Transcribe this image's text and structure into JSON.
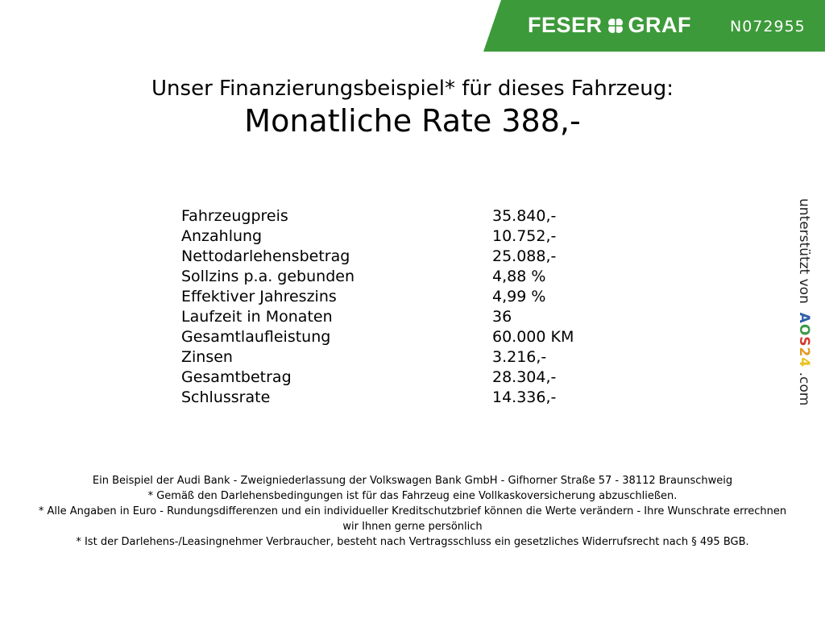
{
  "header": {
    "brand": "FESER",
    "brand2": "GRAF",
    "code": "N072955",
    "brand_color": "#3d9a3a"
  },
  "title": "Unser Finanzierungsbeispiel* für dieses Fahrzeug:",
  "rate": "Monatliche Rate 388,-",
  "rows": [
    {
      "label": "Fahrzeugpreis",
      "value": "35.840,-"
    },
    {
      "label": "Anzahlung",
      "value": "10.752,-"
    },
    {
      "label": "Nettodarlehensbetrag",
      "value": "25.088,-"
    },
    {
      "label": "Sollzins p.a. gebunden",
      "value": "4,88 %"
    },
    {
      "label": "Effektiver Jahreszins",
      "value": "4,99 %"
    },
    {
      "label": "Laufzeit in Monaten",
      "value": "36"
    },
    {
      "label": "Gesamtlaufleistung",
      "value": "60.000 KM"
    },
    {
      "label": "Zinsen",
      "value": "3.216,-"
    },
    {
      "label": "Gesamtbetrag",
      "value": "28.304,-"
    },
    {
      "label": "Schlussrate",
      "value": "14.336,-"
    }
  ],
  "side": {
    "prefix": "unterstützt von",
    "a": "A",
    "o": "O",
    "s": "S",
    "n2": "2",
    "n4": "4",
    "suffix": ".com"
  },
  "footer": [
    "Ein Beispiel der Audi Bank - Zweigniederlassung der Volkswagen Bank GmbH - Gifhorner Straße 57 - 38112 Braunschweig",
    "* Gemäß den Darlehensbedingungen ist für das Fahrzeug eine Vollkaskoversicherung abzuschließen.",
    "* Alle Angaben in Euro - Rundungsdifferenzen und ein individueller Kreditschutzbrief können die Werte verändern - Ihre Wunschrate errechnen wir Ihnen gerne persönlich",
    "* Ist der Darlehens-/Leasingnehmer Verbraucher, besteht nach Vertragsschluss ein gesetzliches Widerrufsrecht nach § 495 BGB."
  ]
}
